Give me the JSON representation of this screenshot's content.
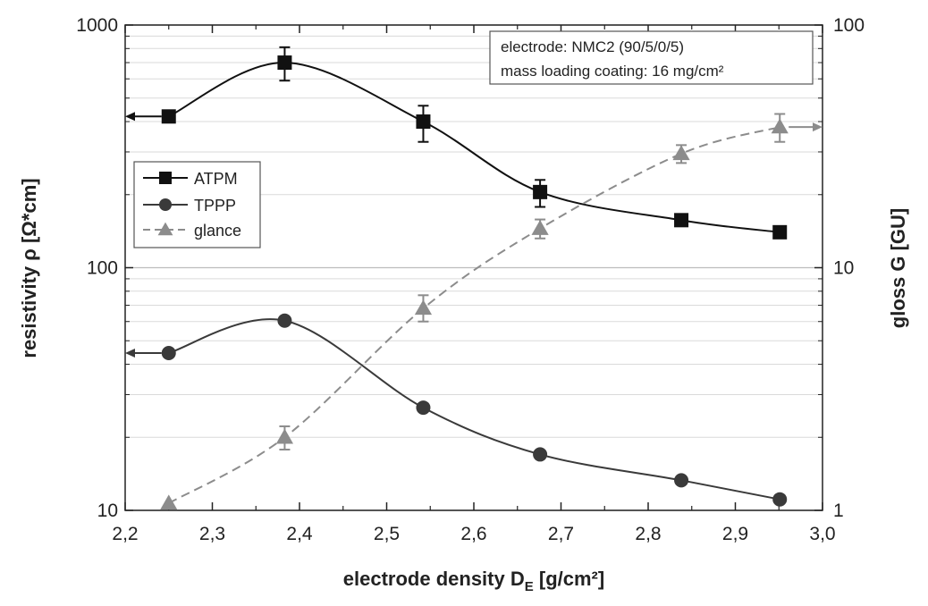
{
  "chart_data": {
    "type": "line",
    "xlabel": "electrode density D",
    "xlabel_sub": "E",
    "xlabel_unit": " [g/cm²]",
    "ylabel": "resistivity ρ [Ω*cm]",
    "y2label": "gloss G [GU]",
    "xlim": [
      2.2,
      3.0
    ],
    "ylim": [
      10,
      1000
    ],
    "y2lim": [
      1,
      100
    ],
    "yscale": "log",
    "y2scale": "log",
    "grid": "horizontal minor",
    "legend_position": "left",
    "x_ticks": [
      "2,2",
      "2,3",
      "2,4",
      "2,5",
      "2,6",
      "2,7",
      "2,8",
      "2,9",
      "3,0"
    ],
    "y_ticks": [
      "10",
      "100",
      "1000"
    ],
    "y2_ticks": [
      "1",
      "10",
      "100"
    ],
    "annotations": [
      "electrode: NMC2 (90/5/0/5)",
      "mass loading coating: 16 mg/cm²"
    ],
    "series": [
      {
        "name": "ATPM",
        "axis": "left",
        "marker": "square",
        "color": "#111111",
        "dash": "solid",
        "x": [
          2.25,
          2.383,
          2.542,
          2.676,
          2.838,
          2.951
        ],
        "values": [
          420,
          700,
          400,
          205,
          157,
          140
        ],
        "error_low": [
          null,
          590,
          330,
          178,
          null,
          null
        ],
        "error_high": [
          null,
          810,
          465,
          230,
          null,
          null
        ]
      },
      {
        "name": "TPPP",
        "axis": "left",
        "marker": "circle",
        "color": "#3a3a3a",
        "dash": "solid",
        "x": [
          2.25,
          2.383,
          2.542,
          2.676,
          2.838,
          2.951
        ],
        "values": [
          44.5,
          60.5,
          26.5,
          17,
          13.3,
          11.1
        ],
        "error_low": [
          null,
          null,
          null,
          null,
          null,
          null
        ],
        "error_high": [
          null,
          null,
          null,
          null,
          null,
          null
        ]
      },
      {
        "name": "glance",
        "axis": "right",
        "marker": "triangle",
        "color": "#8c8c8c",
        "dash": "dashed",
        "x": [
          2.25,
          2.383,
          2.542,
          2.676,
          2.838,
          2.951
        ],
        "values": [
          1.07,
          2.0,
          6.8,
          14.5,
          29.5,
          38
        ],
        "error_low": [
          null,
          1.78,
          6.0,
          13.2,
          27.0,
          33.0
        ],
        "error_high": [
          null,
          2.22,
          7.7,
          15.8,
          32.0,
          43.0
        ]
      }
    ],
    "axis_arrows": [
      {
        "series": "ATPM",
        "direction": "left"
      },
      {
        "series": "TPPP",
        "direction": "left"
      },
      {
        "series": "glance",
        "direction": "right"
      }
    ]
  }
}
